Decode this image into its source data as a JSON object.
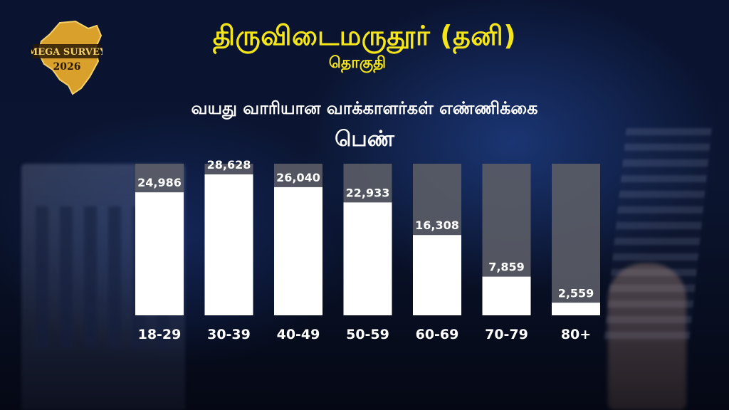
{
  "header": {
    "title": "திருவிடைமருதூர் (தனி)",
    "subtitle": "தொகுதி"
  },
  "logo": {
    "text_top": "MEGA SURVEY",
    "text_year": "2026",
    "colors": {
      "gold": "#d9a12c",
      "dark": "#2a1a05"
    }
  },
  "chart_data": {
    "type": "bar",
    "title": "வயது வாரியான வாக்காளர்கள் எண்ணிக்கை",
    "series_label": "பெண்",
    "categories": [
      "18-29",
      "30-39",
      "40-49",
      "50-59",
      "60-69",
      "70-79",
      "80+"
    ],
    "values": [
      24986,
      28628,
      26040,
      22933,
      16308,
      7859,
      2559
    ],
    "value_labels": [
      "24,986",
      "28,628",
      "26,040",
      "22,933",
      "16,308",
      "7,859",
      "2,559"
    ],
    "colors": {
      "bar": "#ffffff",
      "track": "#5b5d66",
      "label": "#ffffff",
      "title": "#f5e61a"
    },
    "grid": false
  }
}
